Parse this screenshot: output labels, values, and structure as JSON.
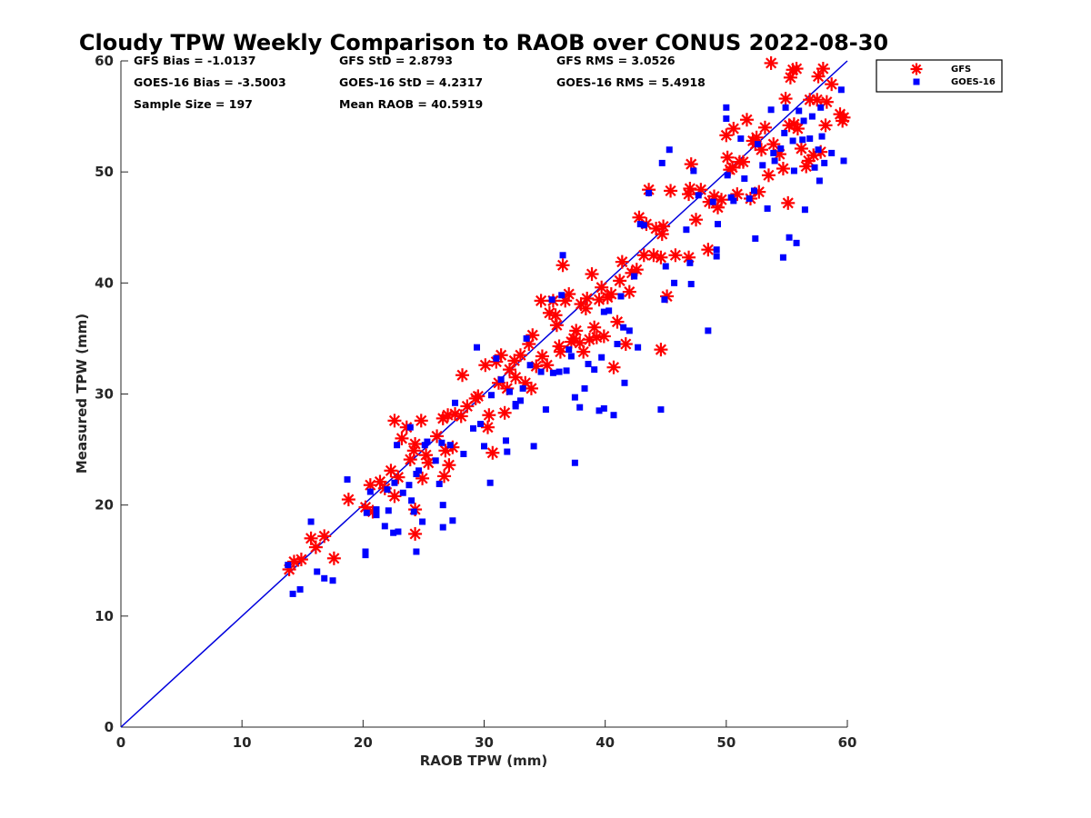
{
  "chart_data": {
    "type": "scatter",
    "title": "Cloudy TPW Weekly Comparison to RAOB over CONUS 2022-08-30",
    "xlabel": "RAOB TPW (mm)",
    "ylabel": "Measured TPW (mm)",
    "xlim": [
      0,
      60
    ],
    "ylim": [
      0,
      60
    ],
    "xticks": [
      "0",
      "10",
      "20",
      "30",
      "40",
      "50",
      "60"
    ],
    "yticks": [
      "0",
      "10",
      "20",
      "30",
      "40",
      "50",
      "60"
    ],
    "grid": false,
    "legend_position": "outside-top-right",
    "reference_line": {
      "name": "1:1 line",
      "color": "#0000dd",
      "x": [
        0,
        60
      ],
      "y": [
        0,
        60
      ]
    },
    "stats": {
      "gfs_bias": "GFS Bias = -1.0137",
      "goes_bias": "GOES-16 Bias = -3.5003",
      "sample_size": "Sample Size = 197",
      "gfs_std": "GFS StD = 2.8793",
      "goes_std": "GOES-16 StD = 4.2317",
      "mean_raob": "Mean RAOB = 40.5919",
      "gfs_rms": "GFS RMS = 3.0526",
      "goes_rms": "GOES-16 RMS = 5.4918"
    },
    "series": [
      {
        "name": "GFS",
        "marker": "asterisk",
        "color": "#ff0000",
        "points": [
          [
            13.9,
            14.2
          ],
          [
            14.3,
            14.9
          ],
          [
            14.9,
            15.1
          ],
          [
            15.7,
            17.0
          ],
          [
            16.1,
            16.2
          ],
          [
            16.8,
            17.2
          ],
          [
            17.6,
            15.2
          ],
          [
            18.8,
            20.5
          ],
          [
            20.2,
            19.8
          ],
          [
            20.6,
            21.8
          ],
          [
            20.8,
            19.4
          ],
          [
            21.4,
            22.1
          ],
          [
            21.8,
            21.5
          ],
          [
            22.3,
            23.1
          ],
          [
            22.6,
            20.8
          ],
          [
            22.6,
            27.6
          ],
          [
            22.9,
            22.5
          ],
          [
            23.2,
            26.0
          ],
          [
            23.6,
            27.0
          ],
          [
            23.9,
            24.1
          ],
          [
            24.3,
            25.5
          ],
          [
            24.3,
            19.6
          ],
          [
            24.3,
            17.4
          ],
          [
            24.8,
            27.6
          ],
          [
            24.9,
            22.4
          ],
          [
            25.2,
            24.5
          ],
          [
            25.4,
            23.8
          ],
          [
            26.6,
            27.8
          ],
          [
            26.7,
            22.6
          ],
          [
            26.8,
            24.9
          ],
          [
            27.0,
            28.1
          ],
          [
            27.1,
            23.6
          ],
          [
            27.4,
            25.2
          ],
          [
            27.6,
            28.2
          ],
          [
            28.1,
            28.0
          ],
          [
            28.2,
            31.7
          ],
          [
            29.3,
            29.6
          ],
          [
            29.5,
            29.8
          ],
          [
            30.1,
            32.6
          ],
          [
            30.3,
            27.0
          ],
          [
            30.4,
            28.1
          ],
          [
            30.7,
            24.7
          ],
          [
            31.0,
            32.9
          ],
          [
            31.2,
            31.0
          ],
          [
            31.4,
            33.5
          ],
          [
            31.7,
            28.3
          ],
          [
            31.9,
            30.5
          ],
          [
            32.1,
            32.2
          ],
          [
            32.5,
            33.0
          ],
          [
            33.0,
            33.5
          ],
          [
            33.4,
            31.0
          ],
          [
            33.7,
            34.5
          ],
          [
            33.9,
            30.5
          ],
          [
            34.0,
            35.3
          ],
          [
            34.3,
            32.5
          ],
          [
            34.7,
            38.4
          ],
          [
            34.8,
            33.4
          ],
          [
            35.2,
            32.6
          ],
          [
            35.4,
            37.3
          ],
          [
            35.7,
            38.4
          ],
          [
            35.9,
            37.1
          ],
          [
            36.2,
            34.3
          ],
          [
            36.3,
            33.8
          ],
          [
            36.5,
            41.6
          ],
          [
            36.7,
            38.4
          ],
          [
            37.0,
            39.0
          ],
          [
            37.2,
            34.7
          ],
          [
            37.4,
            35.0
          ],
          [
            37.6,
            35.7
          ],
          [
            37.9,
            34.6
          ],
          [
            38.0,
            38.1
          ],
          [
            38.2,
            33.8
          ],
          [
            38.5,
            38.6
          ],
          [
            38.7,
            34.9
          ],
          [
            38.9,
            40.8
          ],
          [
            39.1,
            36.0
          ],
          [
            39.3,
            35.1
          ],
          [
            39.5,
            38.5
          ],
          [
            39.7,
            39.6
          ],
          [
            39.9,
            35.2
          ],
          [
            40.2,
            38.7
          ],
          [
            40.5,
            39.0
          ],
          [
            40.7,
            32.4
          ],
          [
            41.0,
            36.5
          ],
          [
            41.2,
            40.2
          ],
          [
            41.4,
            41.9
          ],
          [
            41.7,
            34.5
          ],
          [
            42.0,
            39.2
          ],
          [
            42.2,
            40.9
          ],
          [
            42.6,
            41.2
          ],
          [
            42.8,
            45.9
          ],
          [
            43.2,
            42.5
          ],
          [
            43.4,
            45.3
          ],
          [
            43.6,
            48.4
          ],
          [
            44.0,
            42.5
          ],
          [
            44.6,
            34.0
          ],
          [
            44.6,
            42.3
          ],
          [
            44.7,
            44.4
          ],
          [
            44.8,
            45.1
          ],
          [
            45.1,
            38.8
          ],
          [
            45.4,
            48.3
          ],
          [
            45.8,
            42.5
          ],
          [
            46.9,
            42.3
          ],
          [
            46.9,
            48.0
          ],
          [
            47.0,
            48.5
          ],
          [
            47.1,
            50.7
          ],
          [
            47.5,
            45.7
          ],
          [
            47.9,
            48.4
          ],
          [
            48.5,
            43.0
          ],
          [
            48.6,
            47.3
          ],
          [
            49.0,
            47.8
          ],
          [
            49.3,
            46.8
          ],
          [
            49.6,
            47.5
          ],
          [
            50.0,
            53.3
          ],
          [
            50.1,
            51.3
          ],
          [
            50.3,
            50.2
          ],
          [
            50.5,
            50.4
          ],
          [
            50.6,
            53.9
          ],
          [
            50.9,
            48.0
          ],
          [
            51.4,
            50.9
          ],
          [
            51.7,
            54.7
          ],
          [
            52.0,
            47.6
          ],
          [
            52.2,
            52.8
          ],
          [
            52.5,
            53.1
          ],
          [
            52.7,
            48.2
          ],
          [
            52.9,
            52.0
          ],
          [
            53.2,
            54.0
          ],
          [
            53.5,
            49.7
          ],
          [
            53.7,
            59.8
          ],
          [
            53.9,
            52.5
          ],
          [
            54.4,
            51.6
          ],
          [
            54.7,
            50.3
          ],
          [
            54.9,
            56.6
          ],
          [
            55.1,
            47.2
          ],
          [
            55.2,
            54.2
          ],
          [
            55.3,
            58.5
          ],
          [
            55.5,
            59.2
          ],
          [
            55.6,
            54.3
          ],
          [
            55.8,
            59.3
          ],
          [
            55.9,
            53.9
          ],
          [
            56.2,
            52.1
          ],
          [
            56.6,
            50.5
          ],
          [
            56.9,
            56.5
          ],
          [
            57.2,
            51.5
          ],
          [
            57.5,
            56.5
          ],
          [
            57.6,
            58.6
          ],
          [
            57.8,
            51.8
          ],
          [
            58.0,
            59.3
          ],
          [
            58.2,
            54.2
          ],
          [
            58.3,
            56.3
          ],
          [
            58.7,
            57.9
          ],
          [
            59.4,
            55.2
          ],
          [
            59.6,
            54.6
          ],
          [
            59.7,
            54.9
          ],
          [
            24.2,
            24.9
          ],
          [
            26.1,
            26.2
          ],
          [
            28.6,
            28.9
          ],
          [
            32.6,
            31.5
          ],
          [
            36.0,
            36.2
          ],
          [
            38.4,
            37.7
          ],
          [
            44.2,
            44.9
          ],
          [
            51.1,
            50.9
          ],
          [
            52.4,
            52.5
          ],
          [
            56.8,
            51.0
          ]
        ]
      },
      {
        "name": "GOES-16",
        "marker": "square",
        "color": "#0000ff",
        "points": [
          [
            13.8,
            14.6
          ],
          [
            14.2,
            12.0
          ],
          [
            14.8,
            12.4
          ],
          [
            15.7,
            18.5
          ],
          [
            16.2,
            14.0
          ],
          [
            16.8,
            13.4
          ],
          [
            17.5,
            13.2
          ],
          [
            18.7,
            22.3
          ],
          [
            20.2,
            15.5
          ],
          [
            20.2,
            15.8
          ],
          [
            20.3,
            19.3
          ],
          [
            21.1,
            19.1
          ],
          [
            21.1,
            19.6
          ],
          [
            21.8,
            18.1
          ],
          [
            22.1,
            19.5
          ],
          [
            22.5,
            17.5
          ],
          [
            22.9,
            17.6
          ],
          [
            22.6,
            22.0
          ],
          [
            22.8,
            25.4
          ],
          [
            23.3,
            21.1
          ],
          [
            23.8,
            21.8
          ],
          [
            23.9,
            27.0
          ],
          [
            24.2,
            19.4
          ],
          [
            24.4,
            22.8
          ],
          [
            24.4,
            15.8
          ],
          [
            24.6,
            23.1
          ],
          [
            24.9,
            18.5
          ],
          [
            25.1,
            25.4
          ],
          [
            25.3,
            25.7
          ],
          [
            26.3,
            21.9
          ],
          [
            26.5,
            25.6
          ],
          [
            26.6,
            18.0
          ],
          [
            26.6,
            20.0
          ],
          [
            27.2,
            25.4
          ],
          [
            27.4,
            18.6
          ],
          [
            27.6,
            29.2
          ],
          [
            28.3,
            24.6
          ],
          [
            29.4,
            34.2
          ],
          [
            29.7,
            27.3
          ],
          [
            30.0,
            25.3
          ],
          [
            30.5,
            22.0
          ],
          [
            30.6,
            29.9
          ],
          [
            31.0,
            33.2
          ],
          [
            31.4,
            31.3
          ],
          [
            31.8,
            25.8
          ],
          [
            31.9,
            24.8
          ],
          [
            32.1,
            30.2
          ],
          [
            32.6,
            28.9
          ],
          [
            33.2,
            30.5
          ],
          [
            33.5,
            35.0
          ],
          [
            33.8,
            32.6
          ],
          [
            34.1,
            25.3
          ],
          [
            34.7,
            32.0
          ],
          [
            35.1,
            28.6
          ],
          [
            35.6,
            38.5
          ],
          [
            36.2,
            32.0
          ],
          [
            36.4,
            38.9
          ],
          [
            36.5,
            42.5
          ],
          [
            36.8,
            32.1
          ],
          [
            37.0,
            34.0
          ],
          [
            37.5,
            23.8
          ],
          [
            37.5,
            29.7
          ],
          [
            37.9,
            28.8
          ],
          [
            38.3,
            30.5
          ],
          [
            38.6,
            32.7
          ],
          [
            39.1,
            32.2
          ],
          [
            39.5,
            28.5
          ],
          [
            39.7,
            33.3
          ],
          [
            39.9,
            28.7
          ],
          [
            40.3,
            37.5
          ],
          [
            40.7,
            28.1
          ],
          [
            41.0,
            34.5
          ],
          [
            41.3,
            38.8
          ],
          [
            41.5,
            36.0
          ],
          [
            41.6,
            31.0
          ],
          [
            42.0,
            35.7
          ],
          [
            42.7,
            34.2
          ],
          [
            42.9,
            45.3
          ],
          [
            43.2,
            45.2
          ],
          [
            43.6,
            48.1
          ],
          [
            44.6,
            28.6
          ],
          [
            44.7,
            50.8
          ],
          [
            44.9,
            38.5
          ],
          [
            45.0,
            41.5
          ],
          [
            45.3,
            52.0
          ],
          [
            45.7,
            40.0
          ],
          [
            47.1,
            39.9
          ],
          [
            47.0,
            41.8
          ],
          [
            47.3,
            50.1
          ],
          [
            47.7,
            47.9
          ],
          [
            48.5,
            35.7
          ],
          [
            49.2,
            43.0
          ],
          [
            49.2,
            42.4
          ],
          [
            49.3,
            45.3
          ],
          [
            50.0,
            55.8
          ],
          [
            50.0,
            54.8
          ],
          [
            50.1,
            49.7
          ],
          [
            50.4,
            47.7
          ],
          [
            50.6,
            47.4
          ],
          [
            51.2,
            53.0
          ],
          [
            51.9,
            47.6
          ],
          [
            52.3,
            48.3
          ],
          [
            52.4,
            44.0
          ],
          [
            52.6,
            52.5
          ],
          [
            53.0,
            50.6
          ],
          [
            53.4,
            46.7
          ],
          [
            53.7,
            55.6
          ],
          [
            54.0,
            51.0
          ],
          [
            54.5,
            52.1
          ],
          [
            54.7,
            42.3
          ],
          [
            54.9,
            55.8
          ],
          [
            55.2,
            44.1
          ],
          [
            55.5,
            52.8
          ],
          [
            55.6,
            50.1
          ],
          [
            55.8,
            43.6
          ],
          [
            56.0,
            55.5
          ],
          [
            56.3,
            52.9
          ],
          [
            56.5,
            46.6
          ],
          [
            56.9,
            53.0
          ],
          [
            57.1,
            55.0
          ],
          [
            57.3,
            50.4
          ],
          [
            57.6,
            52.0
          ],
          [
            57.7,
            49.2
          ],
          [
            57.8,
            55.8
          ],
          [
            58.1,
            50.8
          ],
          [
            58.7,
            51.7
          ],
          [
            59.5,
            57.4
          ],
          [
            59.7,
            51.0
          ],
          [
            26.0,
            24.0
          ],
          [
            29.1,
            26.9
          ],
          [
            33.0,
            29.4
          ],
          [
            37.2,
            33.4
          ],
          [
            39.9,
            37.4
          ],
          [
            42.4,
            40.6
          ],
          [
            46.7,
            44.8
          ],
          [
            51.5,
            49.4
          ],
          [
            54.8,
            53.5
          ],
          [
            56.4,
            54.6
          ],
          [
            57.9,
            53.2
          ],
          [
            32.6,
            29.1
          ],
          [
            35.7,
            31.9
          ],
          [
            48.9,
            47.3
          ],
          [
            53.9,
            51.7
          ],
          [
            24.0,
            20.4
          ],
          [
            22.0,
            21.4
          ],
          [
            20.6,
            21.2
          ]
        ]
      }
    ]
  }
}
